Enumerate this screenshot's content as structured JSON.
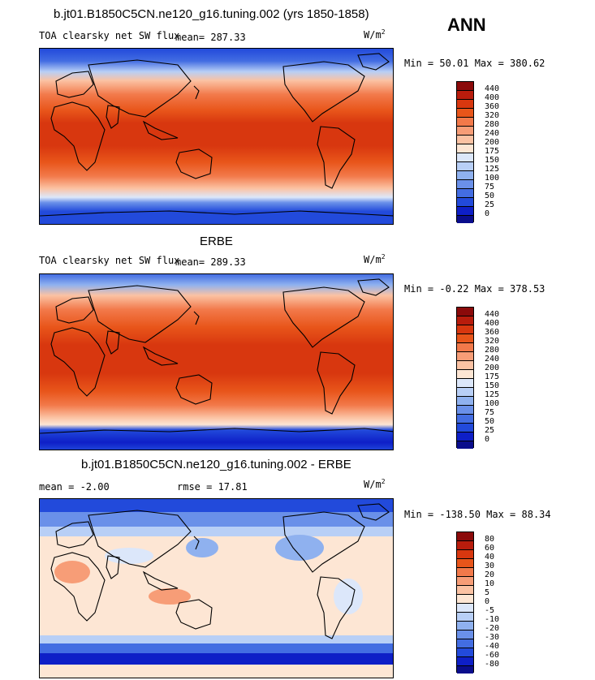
{
  "panels": [
    {
      "title": "b.jt01.B1850C5CN.ne120_g16.tuning.002 (yrs 1850-1858)",
      "variable": "TOA clearsky net SW flux",
      "mean_label": "mean= 287.33",
      "units_base": "W/m",
      "units_exp": "2",
      "minmax": "Min =  50.01 Max = 380.62",
      "levels": [
        "440",
        "400",
        "360",
        "320",
        "280",
        "240",
        "200",
        "175",
        "150",
        "125",
        "100",
        "75",
        "50",
        "25",
        "0"
      ],
      "colors": [
        "#8b0a0a",
        "#b81c0c",
        "#d8370f",
        "#e8551a",
        "#f2794a",
        "#f79d77",
        "#fbc2a3",
        "#fde6d4",
        "#dce7fa",
        "#b8cff6",
        "#8fb1ef",
        "#6a90e9",
        "#436de2",
        "#224adb",
        "#0e1fc7",
        "#0a0d8c"
      ]
    },
    {
      "title": "ERBE",
      "variable": "TOA clearsky net SW flux",
      "mean_label": "mean= 289.33",
      "units_base": "W/m",
      "units_exp": "2",
      "minmax": "Min =  -0.22 Max = 378.53",
      "levels": [
        "440",
        "400",
        "360",
        "320",
        "280",
        "240",
        "200",
        "175",
        "150",
        "125",
        "100",
        "75",
        "50",
        "25",
        "0"
      ],
      "colors": [
        "#8b0a0a",
        "#b81c0c",
        "#d8370f",
        "#e8551a",
        "#f2794a",
        "#f79d77",
        "#fbc2a3",
        "#fde6d4",
        "#dce7fa",
        "#b8cff6",
        "#8fb1ef",
        "#6a90e9",
        "#436de2",
        "#224adb",
        "#0e1fc7",
        "#0a0d8c"
      ]
    },
    {
      "title": "b.jt01.B1850C5CN.ne120_g16.tuning.002 - ERBE",
      "mean_label": "mean =  -2.00",
      "rmse_label": "rmse =  17.81",
      "units_base": "W/m",
      "units_exp": "2",
      "minmax": "Min = -138.50 Max =  88.34",
      "levels": [
        "80",
        "60",
        "40",
        "30",
        "20",
        "10",
        "5",
        "0",
        "-5",
        "-10",
        "-20",
        "-30",
        "-40",
        "-60",
        "-80"
      ],
      "colors": [
        "#8b0a0a",
        "#b81c0c",
        "#d8370f",
        "#e8551a",
        "#f2794a",
        "#f79d77",
        "#fbc2a3",
        "#fde6d4",
        "#dce7fa",
        "#b8cff6",
        "#8fb1ef",
        "#6a90e9",
        "#436de2",
        "#224adb",
        "#0e1fc7",
        "#0a0d8c"
      ]
    }
  ],
  "season": "ANN"
}
